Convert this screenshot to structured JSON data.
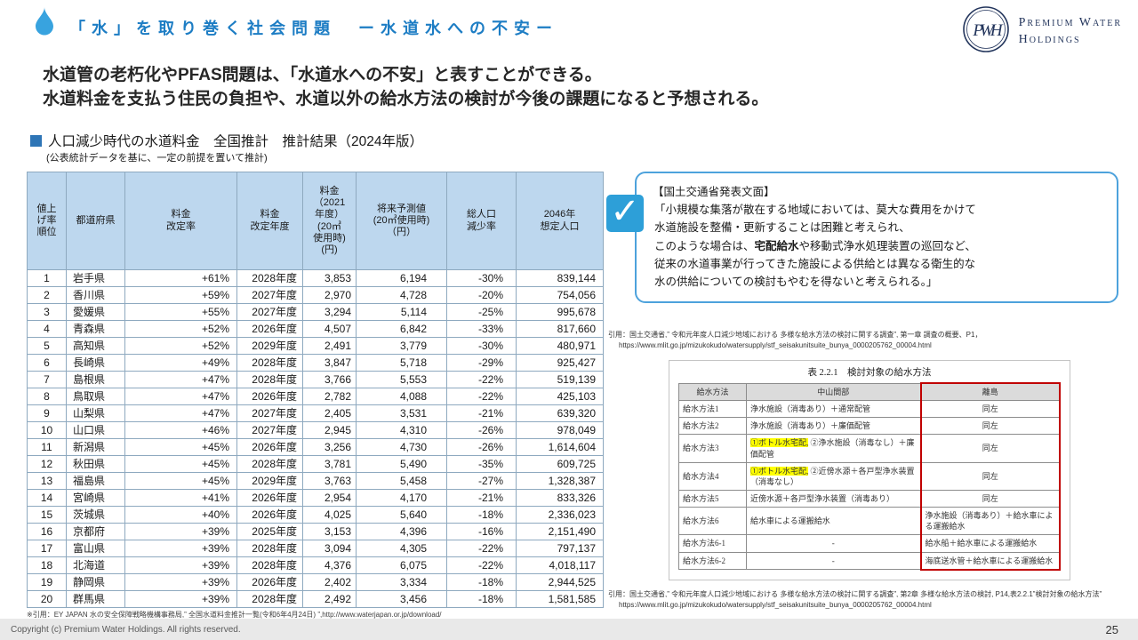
{
  "header": {
    "title": "「水」を取り巻く社会問題　ー水道水への不安ー"
  },
  "logo": {
    "line1": "Premium Water",
    "line2": "Holdings",
    "monogram": "PWH"
  },
  "headline": {
    "line1": "水道管の老朽化やPFAS問題は、「水道水への不安」と表すことができる。",
    "line2": "水道料金を支払う住民の負担や、水道以外の給水方法の検討が今後の課題になると予想される。"
  },
  "section": {
    "title": "人口減少時代の水道料金　全国推計　推計結果（2024年版）",
    "subtitle": "(公表統計データを基に、一定の前提を置いて推計)"
  },
  "table": {
    "headers": [
      "値上\nげ率\n順位",
      "都道府県",
      "料金\n改定率",
      "料金\n改定年度",
      "料金\n（2021\n年度）\n(20㎥\n使用時)\n(円)",
      "将来予測値\n(20㎥使用時)\n（円）",
      "総人口\n減少率",
      "2046年\n想定人口"
    ],
    "rows": [
      [
        "1",
        "岩手県",
        "+61%",
        "2028年度",
        "3,853",
        "6,194",
        "-30%",
        "839,144"
      ],
      [
        "2",
        "香川県",
        "+59%",
        "2027年度",
        "2,970",
        "4,728",
        "-20%",
        "754,056"
      ],
      [
        "3",
        "愛媛県",
        "+55%",
        "2027年度",
        "3,294",
        "5,114",
        "-25%",
        "995,678"
      ],
      [
        "4",
        "青森県",
        "+52%",
        "2026年度",
        "4,507",
        "6,842",
        "-33%",
        "817,660"
      ],
      [
        "5",
        "高知県",
        "+52%",
        "2029年度",
        "2,491",
        "3,779",
        "-30%",
        "480,971"
      ],
      [
        "6",
        "長崎県",
        "+49%",
        "2028年度",
        "3,847",
        "5,718",
        "-29%",
        "925,427"
      ],
      [
        "7",
        "島根県",
        "+47%",
        "2028年度",
        "3,766",
        "5,553",
        "-22%",
        "519,139"
      ],
      [
        "8",
        "鳥取県",
        "+47%",
        "2026年度",
        "2,782",
        "4,088",
        "-22%",
        "425,103"
      ],
      [
        "9",
        "山梨県",
        "+47%",
        "2027年度",
        "2,405",
        "3,531",
        "-21%",
        "639,320"
      ],
      [
        "10",
        "山口県",
        "+46%",
        "2027年度",
        "2,945",
        "4,310",
        "-26%",
        "978,049"
      ],
      [
        "11",
        "新潟県",
        "+45%",
        "2026年度",
        "3,256",
        "4,730",
        "-26%",
        "1,614,604"
      ],
      [
        "12",
        "秋田県",
        "+45%",
        "2028年度",
        "3,781",
        "5,490",
        "-35%",
        "609,725"
      ],
      [
        "13",
        "福島県",
        "+45%",
        "2029年度",
        "3,763",
        "5,458",
        "-27%",
        "1,328,387"
      ],
      [
        "14",
        "宮崎県",
        "+41%",
        "2026年度",
        "2,954",
        "4,170",
        "-21%",
        "833,326"
      ],
      [
        "15",
        "茨城県",
        "+40%",
        "2026年度",
        "4,025",
        "5,640",
        "-18%",
        "2,336,023"
      ],
      [
        "16",
        "京都府",
        "+39%",
        "2025年度",
        "3,153",
        "4,396",
        "-16%",
        "2,151,490"
      ],
      [
        "17",
        "富山県",
        "+39%",
        "2028年度",
        "3,094",
        "4,305",
        "-22%",
        "797,137"
      ],
      [
        "18",
        "北海道",
        "+39%",
        "2028年度",
        "4,376",
        "6,075",
        "-22%",
        "4,018,117"
      ],
      [
        "19",
        "静岡県",
        "+39%",
        "2026年度",
        "2,402",
        "3,334",
        "-18%",
        "2,944,525"
      ],
      [
        "20",
        "群馬県",
        "+39%",
        "2028年度",
        "2,492",
        "3,456",
        "-18%",
        "1,581,585"
      ]
    ],
    "footnote": "※引用：EY JAPAN 水の安全保障戦略機構事務局,” 全国水道料金推計一覧(令和6年4月24日) ”,http://www.waterjapan.or.jp/download/"
  },
  "callout": {
    "title": "【国土交通省発表文面】",
    "body_pre": "「小規模な集落が散在する地域においては、莫大な費用をかけて\n水道施設を整備・更新することは困難と考えられ、\nこのような場合は、",
    "body_bold": "宅配給水",
    "body_post": "や移動式浄水処理装置の巡回など、\n従来の水道事業が行ってきた施設による供給とは異なる衛生的な\n水の供給についての検討もやむを得ないと考えられる。」"
  },
  "citation1": {
    "line1": "引用：国土交通省,” 令和元年度人口減少地域における 多様な給水方法の検討に関する調査”, 第一章 調査の概要、P1，",
    "line2": "https://www.mlit.go.jp/mizukokudo/watersupply/stf_seisakunitsuite_bunya_0000205762_00004.html"
  },
  "method_table": {
    "title": "表 2.2.1　検討対象の給水方法",
    "headers": [
      "給水方法",
      "中山間部",
      "離島"
    ],
    "rows": [
      {
        "method": "給水方法1",
        "chusankan": [
          {
            "t": "浄水施設（消毒あり）＋通常配管"
          }
        ],
        "rito": "同左"
      },
      {
        "method": "給水方法2",
        "chusankan": [
          {
            "t": "浄水施設（消毒あり）＋廉価配管"
          }
        ],
        "rito": "同左"
      },
      {
        "method": "給水方法3",
        "chusankan": [
          {
            "t": "①ボトル水宅配,",
            "hl": true
          },
          {
            "t": " ②浄水施設（消毒なし）＋廉価配管"
          }
        ],
        "rito": "同左"
      },
      {
        "method": "給水方法4",
        "chusankan": [
          {
            "t": "①ボトル水宅配,",
            "hl": true
          },
          {
            "t": " ②近傍水源＋各戸型浄水装置（消毒なし）"
          }
        ],
        "rito": "同左"
      },
      {
        "method": "給水方法5",
        "chusankan": [
          {
            "t": "近傍水源＋各戸型浄水装置（消毒あり）"
          }
        ],
        "rito": "同左"
      },
      {
        "method": "給水方法6",
        "chusankan": [
          {
            "t": "給水車による運搬給水"
          }
        ],
        "rito": "浄水施設（消毒あり）＋給水車による運搬給水"
      },
      {
        "method": "給水方法6-1",
        "chusankan": [
          {
            "t": "-"
          }
        ],
        "rito": "給水船＋給水車による運搬給水"
      },
      {
        "method": "給水方法6-2",
        "chusankan": [
          {
            "t": "-"
          }
        ],
        "rito": "海底送水管＋給水車による運搬給水"
      }
    ]
  },
  "citation2": {
    "line1": "引用：国土交通省,” 令和元年度人口減少地域における 多様な給水方法の検討に関する調査”, 第2章 多様な給水方法の検討, P14,表2.2.1”検討対象の給水方法”",
    "line2": "https://www.mlit.go.jp/mizukokudo/watersupply/stf_seisakunitsuite_bunya_0000205762_00004.html"
  },
  "footer": {
    "copyright": "Copyright (c) Premium Water Holdings. All rights reserved.",
    "page_number": "25"
  },
  "colors": {
    "title_blue": "#1d7dc4",
    "table_header_bg": "#bdd7ee",
    "callout_border": "#4da2dc",
    "check_bg": "#2d9fd8",
    "highlight_yellow": "#ffff00",
    "red_outline": "#c00000",
    "section_bullet": "#2e75b6"
  }
}
